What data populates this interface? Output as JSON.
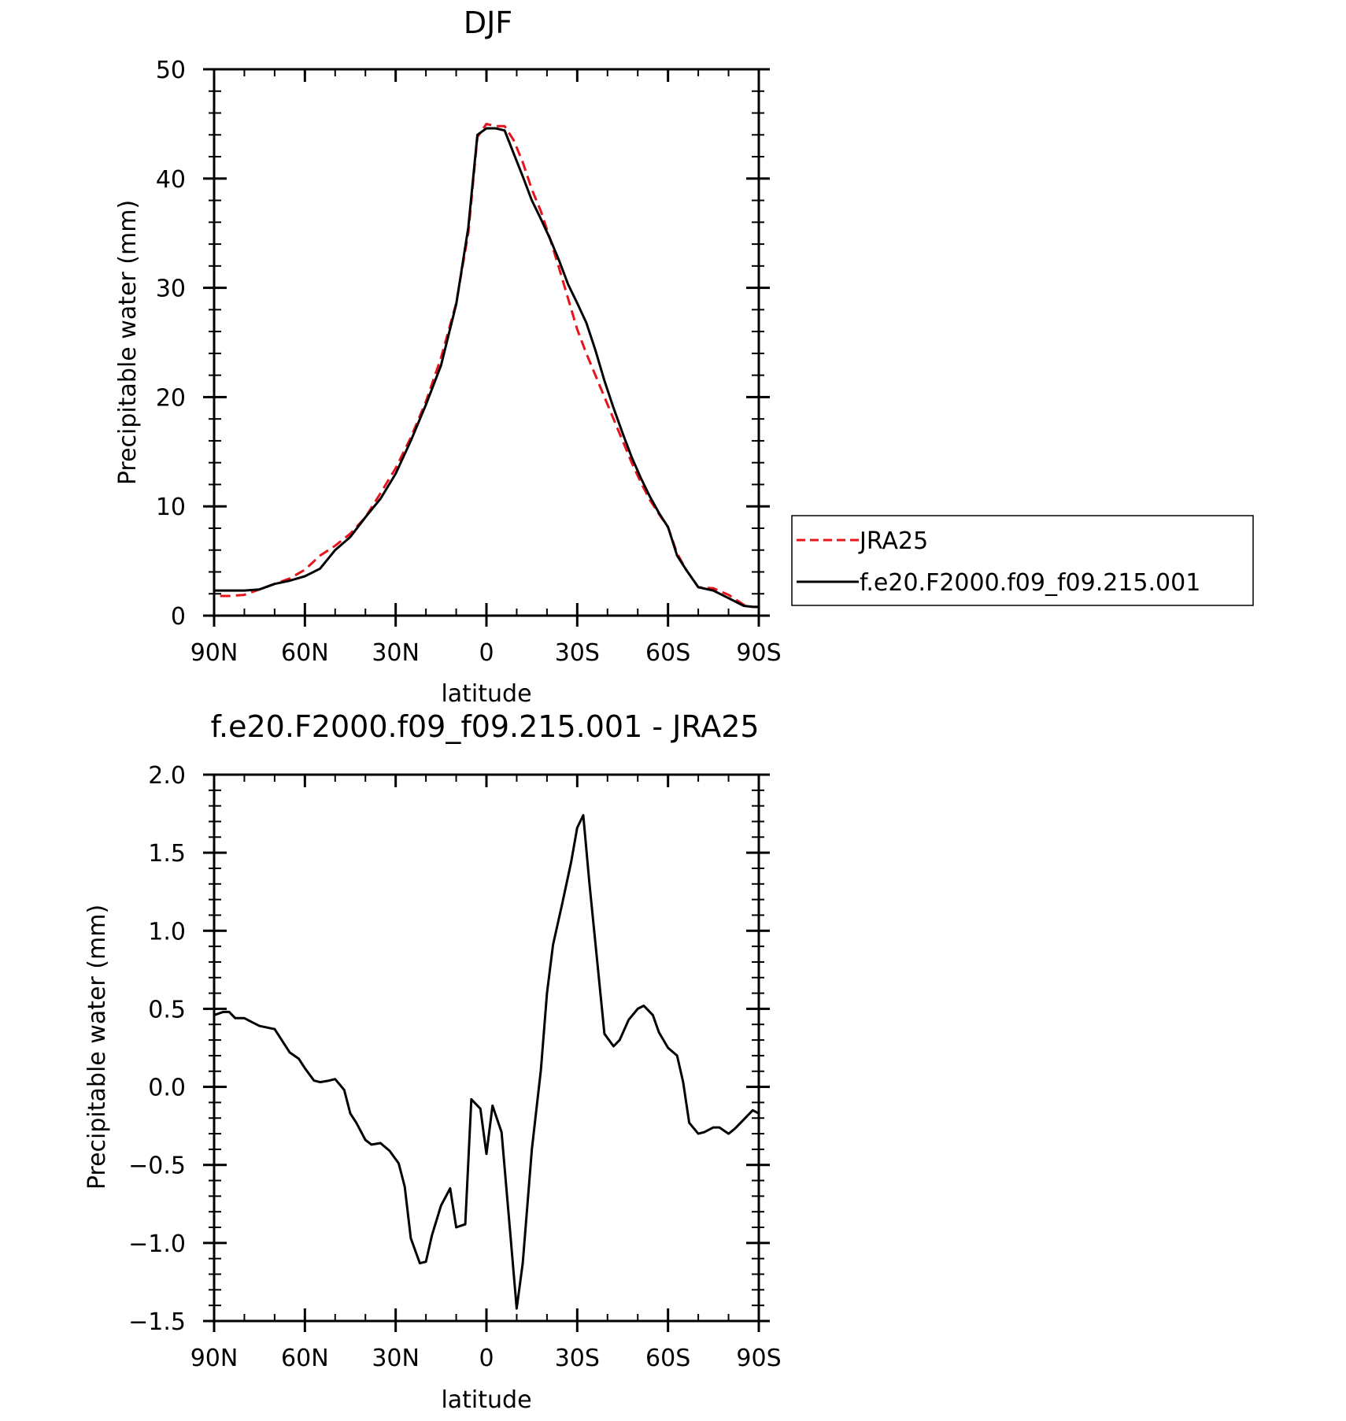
{
  "colors": {
    "jra25": "#e8141b",
    "model": "#000000",
    "axis": "#000000",
    "background": "#ffffff"
  },
  "chart_data": [
    {
      "type": "line",
      "title": "DJF",
      "xlabel": "latitude",
      "ylabel": "Precipitable water (mm)",
      "xlim": [
        -90,
        90
      ],
      "ylim": [
        0,
        50
      ],
      "x_ticks": [
        -90,
        -60,
        -30,
        0,
        30,
        60,
        90
      ],
      "x_tick_labels": [
        "90N",
        "60N",
        "30N",
        "0",
        "30S",
        "60S",
        "90S"
      ],
      "y_ticks": [
        0,
        10,
        20,
        30,
        40,
        50
      ],
      "y_tick_labels": [
        "0",
        "10",
        "20",
        "30",
        "40",
        "50"
      ],
      "legend_position": "right",
      "series": [
        {
          "name": "JRA25",
          "color": "#e8141b",
          "style": "dashed",
          "x": [
            -88,
            -85,
            -80,
            -75,
            -70,
            -65,
            -60,
            -55,
            -50,
            -45,
            -40,
            -35,
            -30,
            -25,
            -20,
            -15,
            -10,
            -6,
            -3,
            0,
            3,
            6,
            9,
            12,
            15,
            18,
            21,
            24,
            27,
            30,
            33,
            36,
            39,
            42,
            45,
            48,
            51,
            54,
            57,
            60,
            63,
            66,
            70,
            75,
            80,
            85,
            88,
            90
          ],
          "values": [
            1.8,
            1.8,
            1.9,
            2.4,
            2.9,
            3.4,
            4.2,
            5.5,
            6.4,
            7.5,
            9.0,
            11.2,
            13.5,
            16.3,
            19.6,
            23.6,
            28.6,
            35.0,
            43.8,
            45.0,
            44.8,
            44.8,
            43.5,
            41.5,
            39.0,
            37.0,
            34.5,
            31.8,
            29.0,
            26.2,
            24.0,
            22.0,
            20.0,
            18.0,
            16.0,
            14.0,
            12.2,
            10.6,
            9.3,
            8.1,
            5.7,
            4.2,
            2.6,
            2.5,
            1.9,
            1.0,
            0.8,
            0.8
          ]
        },
        {
          "name": "f.e20.F2000.f09_f09.215.001",
          "color": "#000000",
          "style": "solid",
          "x": [
            -90,
            -85,
            -80,
            -75,
            -70,
            -65,
            -60,
            -55,
            -50,
            -45,
            -40,
            -35,
            -30,
            -25,
            -20,
            -15,
            -10,
            -6,
            -3,
            0,
            3,
            6,
            9,
            12,
            15,
            18,
            21,
            24,
            27,
            30,
            33,
            36,
            39,
            42,
            45,
            48,
            51,
            54,
            57,
            60,
            63,
            66,
            70,
            75,
            80,
            85,
            88,
            90
          ],
          "values": [
            2.3,
            2.3,
            2.3,
            2.4,
            2.9,
            3.2,
            3.6,
            4.3,
            6.0,
            7.2,
            9.0,
            10.7,
            13.0,
            16.0,
            19.3,
            22.9,
            28.5,
            35.5,
            44.0,
            44.6,
            44.6,
            44.4,
            42.3,
            40.2,
            38.0,
            36.3,
            34.5,
            32.5,
            30.3,
            28.6,
            26.8,
            24.3,
            21.5,
            19.0,
            16.7,
            14.5,
            12.6,
            10.9,
            9.4,
            8.1,
            5.5,
            4.2,
            2.6,
            2.3,
            1.6,
            0.9,
            0.8,
            0.8
          ]
        }
      ]
    },
    {
      "type": "line",
      "title": "f.e20.F2000.f09_f09.215.001 - JRA25",
      "xlabel": "latitude",
      "ylabel": "Precipitable water (mm)",
      "xlim": [
        -90,
        90
      ],
      "ylim": [
        -1.5,
        2.0
      ],
      "x_ticks": [
        -90,
        -60,
        -30,
        0,
        30,
        60,
        90
      ],
      "x_tick_labels": [
        "90N",
        "60N",
        "30N",
        "0",
        "30S",
        "60S",
        "90S"
      ],
      "y_ticks": [
        -1.5,
        -1.0,
        -0.5,
        0.0,
        0.5,
        1.0,
        1.5,
        2.0
      ],
      "y_tick_labels": [
        "-1.5",
        "-1.0",
        "-0.5",
        "0.0",
        "0.5",
        "1.0",
        "1.5",
        "2.0"
      ],
      "series": [
        {
          "color": "#000000",
          "style": "solid",
          "x": [
            -90,
            -87,
            -85,
            -83,
            -80,
            -77,
            -75,
            -70,
            -68,
            -65,
            -62,
            -60,
            -57,
            -55,
            -52,
            -50,
            -47,
            -45,
            -43,
            -40,
            -38,
            -35,
            -32,
            -29,
            -27,
            -25,
            -22,
            -20,
            -18,
            -15,
            -12,
            -10,
            -7,
            -5,
            -2,
            0,
            2,
            5,
            8,
            10,
            12,
            15,
            18,
            20,
            22,
            25,
            28,
            30,
            32,
            34,
            37,
            39,
            42,
            44,
            47,
            50,
            52,
            55,
            57,
            60,
            63,
            65,
            67,
            70,
            72,
            75,
            77,
            80,
            82,
            85,
            88,
            90
          ],
          "values": [
            0.46,
            0.48,
            0.48,
            0.44,
            0.44,
            0.41,
            0.39,
            0.37,
            0.31,
            0.22,
            0.18,
            0.12,
            0.04,
            0.03,
            0.04,
            0.05,
            -0.02,
            -0.17,
            -0.23,
            -0.34,
            -0.37,
            -0.36,
            -0.41,
            -0.49,
            -0.64,
            -0.97,
            -1.13,
            -1.12,
            -0.95,
            -0.76,
            -0.65,
            -0.9,
            -0.88,
            -0.08,
            -0.14,
            -0.43,
            -0.12,
            -0.29,
            -0.97,
            -1.42,
            -1.13,
            -0.4,
            0.11,
            0.6,
            0.91,
            1.17,
            1.44,
            1.66,
            1.74,
            1.31,
            0.73,
            0.34,
            0.26,
            0.3,
            0.43,
            0.5,
            0.52,
            0.46,
            0.35,
            0.25,
            0.2,
            0.03,
            -0.23,
            -0.3,
            -0.29,
            -0.26,
            -0.26,
            -0.3,
            -0.27,
            -0.21,
            -0.15,
            -0.17
          ]
        }
      ]
    }
  ]
}
